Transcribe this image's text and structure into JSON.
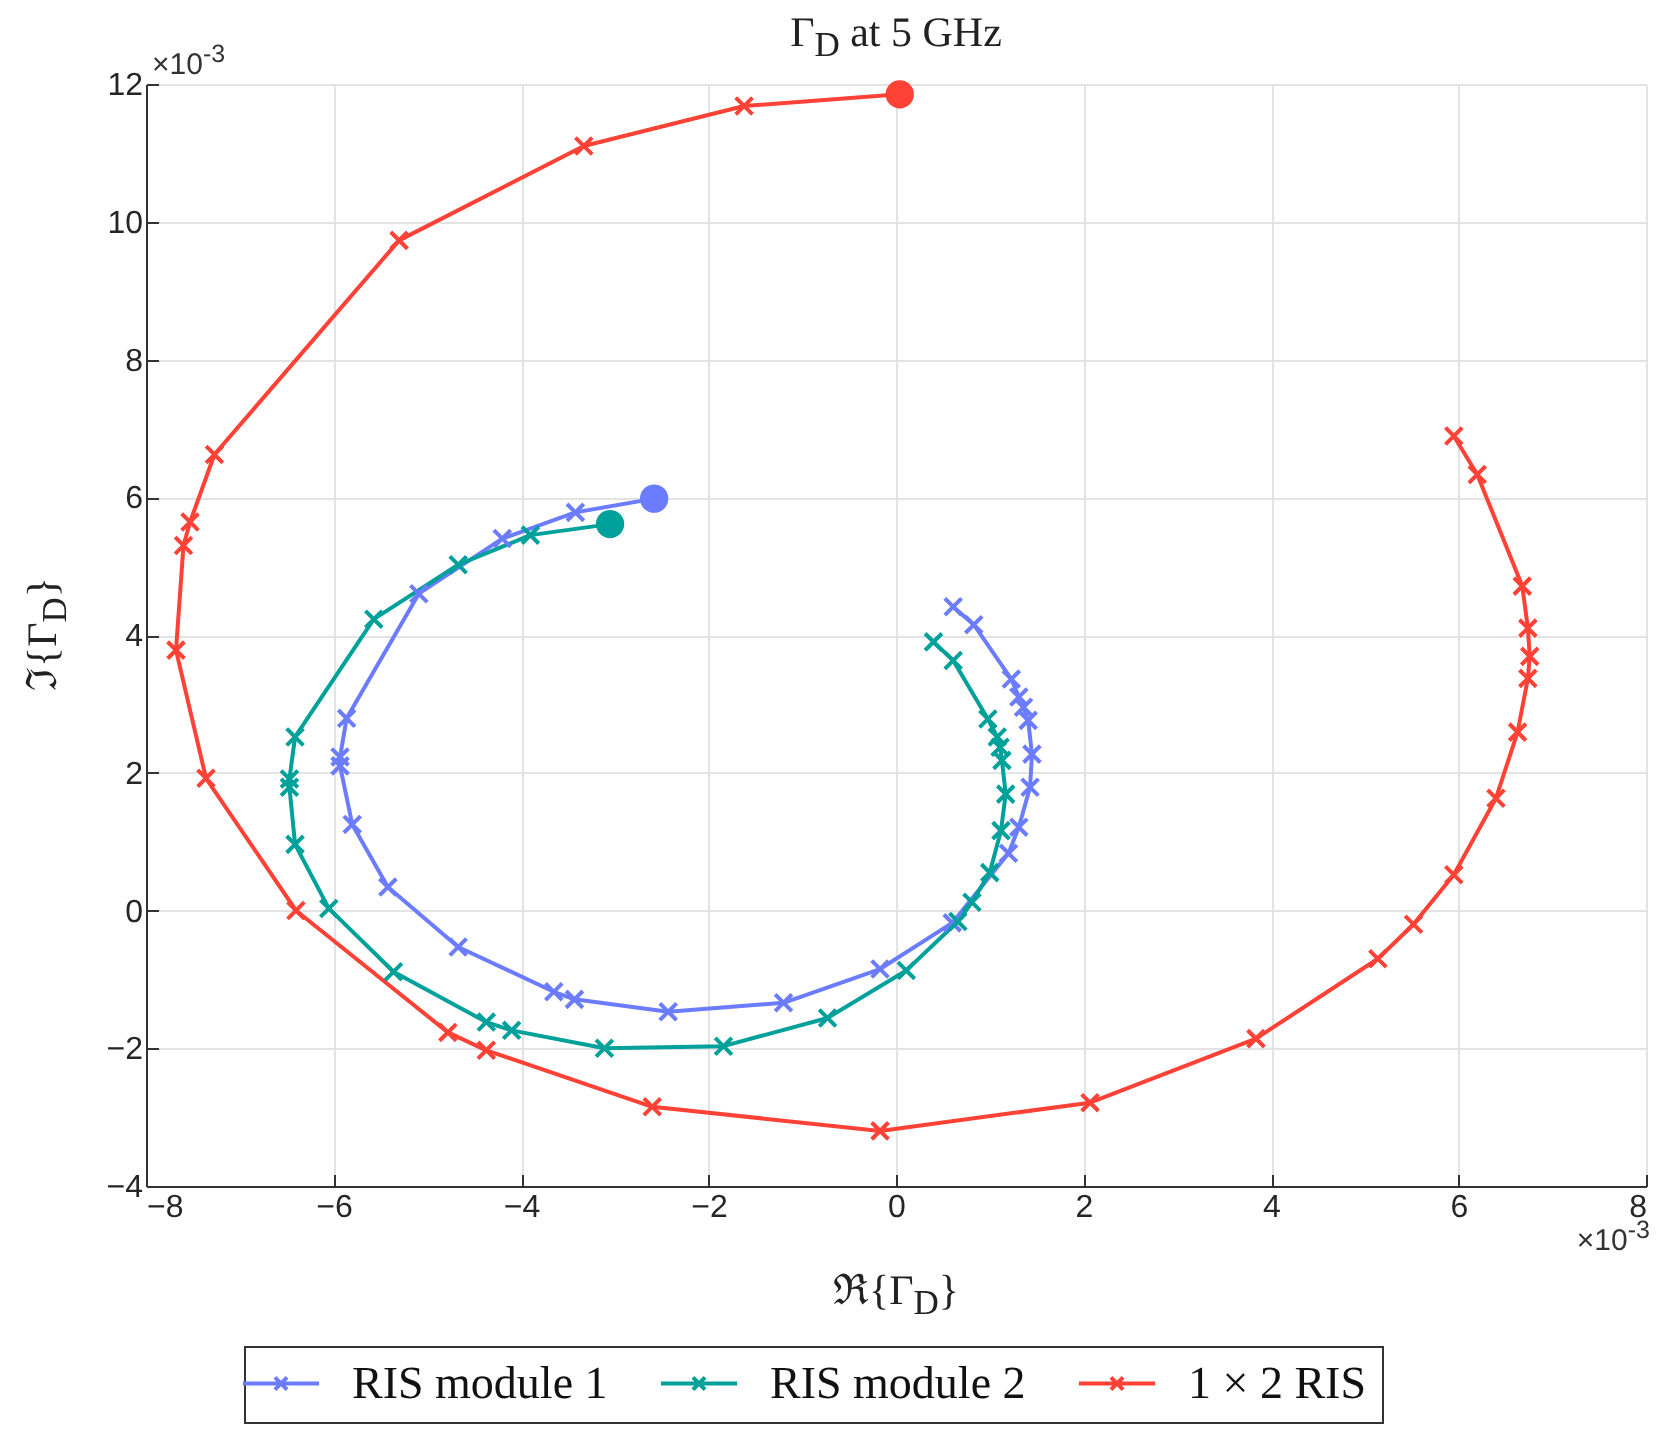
{
  "chart_data": {
    "type": "line",
    "title": "Γ$_{D}$ at 5 GHz",
    "xlabel": "ℜ{Γ$_{D}$}",
    "ylabel": "ℑ{Γ$_{D}$}",
    "annotations": [
      "×10$^{-3}$",
      "×10$^{-3}$"
    ],
    "xlim": [
      -8,
      8
    ],
    "xticks": [
      -8,
      -6,
      -4,
      -2,
      0,
      2,
      4,
      6,
      8
    ],
    "ylim": [
      -4,
      12
    ],
    "yticks": [
      -4,
      -2,
      0,
      2,
      4,
      6,
      8,
      10,
      12
    ],
    "grid": true,
    "legend": "bottom",
    "marker": "cross",
    "line_style": "solid",
    "series": [
      {
        "type": "scatter",
        "marker": "circle",
        "color": "#6b7cff",
        "x": [
          -2.58
        ],
        "values": [
          5.98
        ]
      },
      {
        "type": "scatter",
        "marker": "circle",
        "color": "#00a19a",
        "x": [
          -3.05
        ],
        "values": [
          5.61
        ]
      },
      {
        "type": "scatter",
        "marker": "circle",
        "color": "#ff4136",
        "x": [
          0.04
        ],
        "values": [
          11.85
        ]
      },
      {
        "name": "RIS module 1",
        "color": "#6b7cff",
        "x": [
          -2.58,
          -3.42,
          -4.2,
          -5.09,
          -5.86,
          -5.93,
          -5.93,
          -5.8,
          -5.42,
          -4.67,
          -3.65,
          -3.43,
          -2.43,
          -1.2,
          -0.17,
          0.6,
          1.2,
          1.31,
          1.43,
          1.45,
          1.41,
          1.36,
          1.31,
          1.23,
          0.83,
          0.61
        ],
        "values": [
          5.98,
          5.78,
          5.4,
          4.6,
          2.79,
          2.23,
          2.1,
          1.25,
          0.34,
          -0.53,
          -1.18,
          -1.29,
          -1.47,
          -1.34,
          -0.85,
          -0.18,
          0.83,
          1.21,
          1.79,
          2.27,
          2.76,
          2.95,
          3.1,
          3.36,
          4.15,
          4.41
        ]
      },
      {
        "name": "RIS module 2",
        "color": "#00a19a",
        "x": [
          -3.05,
          -3.9,
          -4.67,
          -5.57,
          -6.41,
          -6.47,
          -6.47,
          -6.41,
          -6.05,
          -5.36,
          -4.37,
          -4.1,
          -3.11,
          -1.84,
          -0.73,
          0.11,
          0.66,
          0.81,
          1.0,
          1.12,
          1.17,
          1.13,
          1.11,
          1.08,
          0.98,
          0.61,
          0.4
        ],
        "values": [
          5.61,
          5.45,
          5.02,
          4.23,
          2.52,
          1.91,
          1.79,
          0.96,
          0.03,
          -0.89,
          -1.62,
          -1.74,
          -2.0,
          -1.97,
          -1.56,
          -0.87,
          -0.16,
          0.12,
          0.55,
          1.16,
          1.69,
          2.18,
          2.37,
          2.52,
          2.78,
          3.63,
          3.9
        ]
      },
      {
        "name": "1 × 2 RIS",
        "color": "#ff4136",
        "x": [
          0.04,
          -1.62,
          -3.33,
          -5.3,
          -7.27,
          -7.53,
          -7.6,
          -7.68,
          -7.36,
          -6.4,
          -4.78,
          -4.37,
          -2.6,
          -0.17,
          2.07,
          3.84,
          5.14,
          5.52,
          5.95,
          6.4,
          6.63,
          6.74,
          6.76,
          6.74,
          6.68,
          6.2,
          5.95
        ],
        "values": [
          11.85,
          11.68,
          11.1,
          9.73,
          6.62,
          5.64,
          5.3,
          3.78,
          1.92,
          0,
          -1.77,
          -2.03,
          -2.85,
          -3.2,
          -2.79,
          -1.86,
          -0.7,
          -0.2,
          0.52,
          1.63,
          2.59,
          3.37,
          3.69,
          4.1,
          4.71,
          6.33,
          6.89
        ]
      }
    ]
  }
}
